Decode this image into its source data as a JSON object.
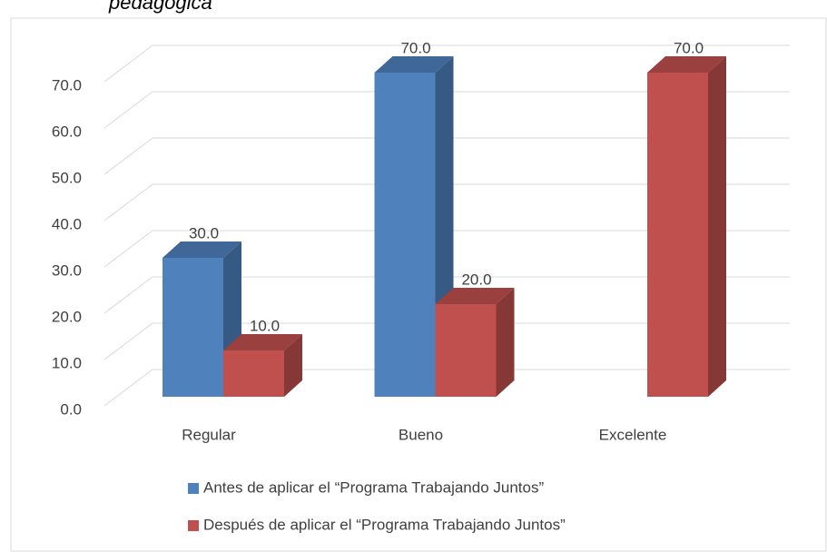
{
  "chart_data": {
    "type": "bar3d",
    "title": "pedagógica",
    "categories": [
      "Regular",
      "Bueno",
      "Excelente"
    ],
    "series": [
      {
        "name": "Antes de aplicar el “Programa Trabajando Juntos”",
        "color": "#4f81bd",
        "values": [
          30,
          70,
          null
        ],
        "value_labels": [
          "30.0",
          "70.0",
          null
        ]
      },
      {
        "name": "Después de aplicar el “Programa Trabajando Juntos”",
        "color": "#c0504d",
        "values": [
          10,
          20,
          70
        ],
        "value_labels": [
          "10.0",
          "20.0",
          "70.0"
        ]
      }
    ],
    "ylim": [
      0,
      70
    ],
    "yticks": [
      {
        "value": 0,
        "label": "0.0"
      },
      {
        "value": 10,
        "label": "10.0"
      },
      {
        "value": 20,
        "label": "20.0"
      },
      {
        "value": 30,
        "label": "30.0"
      },
      {
        "value": 40,
        "label": "40.0"
      },
      {
        "value": 50,
        "label": "50.0"
      },
      {
        "value": 60,
        "label": "60.0"
      },
      {
        "value": 70,
        "label": "70.0"
      }
    ],
    "grid": true,
    "legend": "bottom"
  }
}
